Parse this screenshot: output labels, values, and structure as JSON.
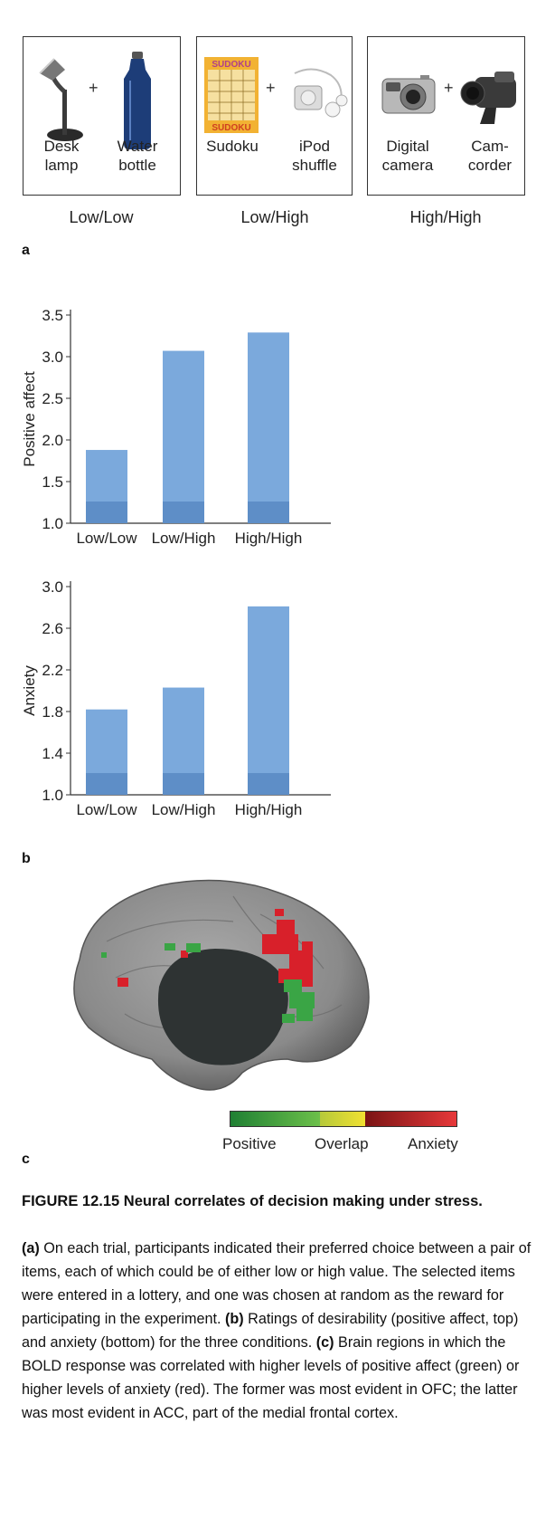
{
  "panel_a": {
    "label": "a",
    "groups": [
      {
        "condition": "Low/Low",
        "items": [
          "Desk\nlamp",
          "Water\nbottle"
        ]
      },
      {
        "condition": "Low/High",
        "items": [
          "Sudoku",
          "iPod\nshuffle"
        ]
      },
      {
        "condition": "High/High",
        "items": [
          "Digital\ncamera",
          "Cam-\ncorder"
        ]
      }
    ],
    "plus": "+",
    "sudoku_text": "SUDOKU"
  },
  "panel_b": {
    "label": "b"
  },
  "panel_c": {
    "label": "c",
    "legend": {
      "positive": "Positive",
      "overlap": "Overlap",
      "anxiety": "Anxiety"
    },
    "colors": {
      "positive": "#2e9e3e",
      "overlap": "#e8d83a",
      "anxiety": "#c8282a"
    }
  },
  "chart_data": [
    {
      "type": "bar",
      "title": "",
      "ylabel": "Positive affect",
      "xlabel": "",
      "categories": [
        "Low/Low",
        "Low/High",
        "High/High"
      ],
      "values": [
        1.88,
        3.07,
        3.29
      ],
      "ylim": [
        1.0,
        3.5
      ],
      "yticks": [
        "1.0",
        "1.5",
        "2.0",
        "2.5",
        "3.0",
        "3.5"
      ],
      "color": "#7ba9dc"
    },
    {
      "type": "bar",
      "title": "",
      "ylabel": "Anxiety",
      "xlabel": "",
      "categories": [
        "Low/Low",
        "Low/High",
        "High/High"
      ],
      "values": [
        1.82,
        2.03,
        2.81
      ],
      "ylim": [
        1.0,
        3.0
      ],
      "yticks": [
        "1.0",
        "1.4",
        "1.8",
        "2.2",
        "2.6",
        "3.0"
      ],
      "color": "#7ba9dc"
    }
  ],
  "caption": {
    "title": "FIGURE 12.15  Neural correlates of decision making under stress.",
    "body": [
      {
        "bold": "(a)",
        "text": " On each trial, participants indicated their preferred choice between a pair of items, each of which could be of either low or high value. The selected items were entered in a lottery, and one was chosen at random as the reward for participating in the experiment. "
      },
      {
        "bold": "(b)",
        "text": " Ratings of desirability (positive affect, top) and anxiety (bottom) for the three conditions. "
      },
      {
        "bold": "(c)",
        "text": " Brain regions in which the BOLD response was correlated with higher levels of positive affect (green) or higher levels of anxiety (red). The former was most evident in OFC; the latter was most evident in ACC, part of the medial frontal cortex."
      }
    ]
  }
}
